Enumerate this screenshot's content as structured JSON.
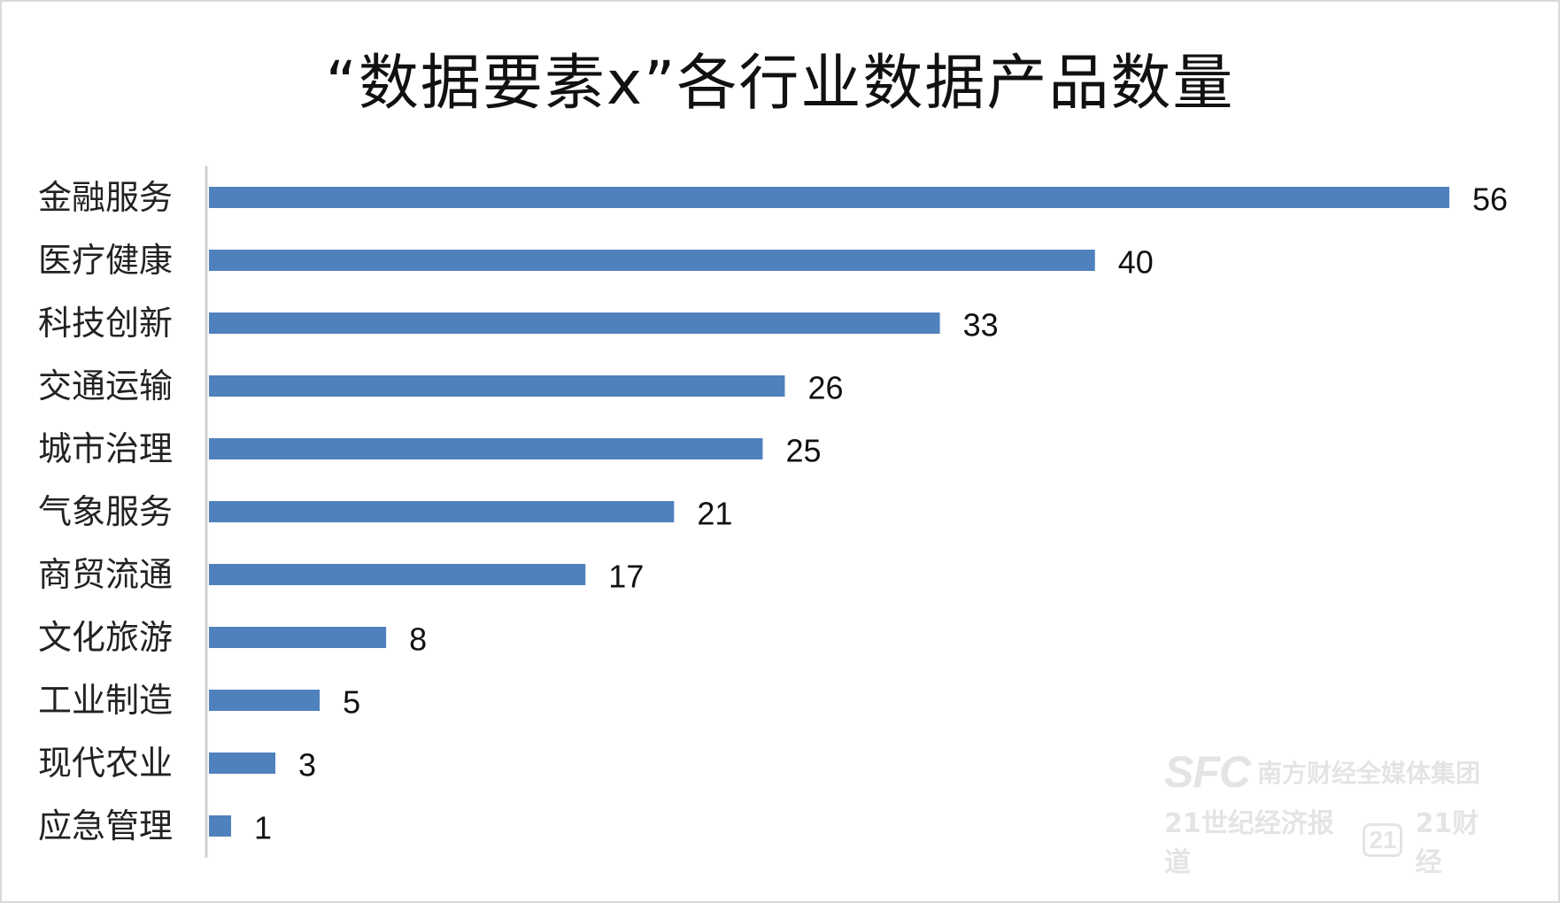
{
  "chart_data": {
    "type": "bar",
    "orientation": "horizontal",
    "title": "“数据要素x”各行业数据产品数量",
    "categories": [
      "金融服务",
      "医疗健康",
      "科技创新",
      "交通运输",
      "城市治理",
      "气象服务",
      "商贸流通",
      "文化旅游",
      "工业制造",
      "现代农业",
      "应急管理"
    ],
    "values": [
      56,
      40,
      33,
      26,
      25,
      21,
      17,
      8,
      5,
      3,
      1
    ],
    "xlabel": "",
    "ylabel": "",
    "xlim": [
      0,
      56
    ],
    "grid": false,
    "legend": "none",
    "data_labels": true,
    "bar_color": "#4f81bd"
  },
  "watermark": {
    "brand": "SFC",
    "line1": "南方财经全媒体集团",
    "line2": "21世纪经济报道",
    "badge": "21",
    "line3": "21财经"
  }
}
